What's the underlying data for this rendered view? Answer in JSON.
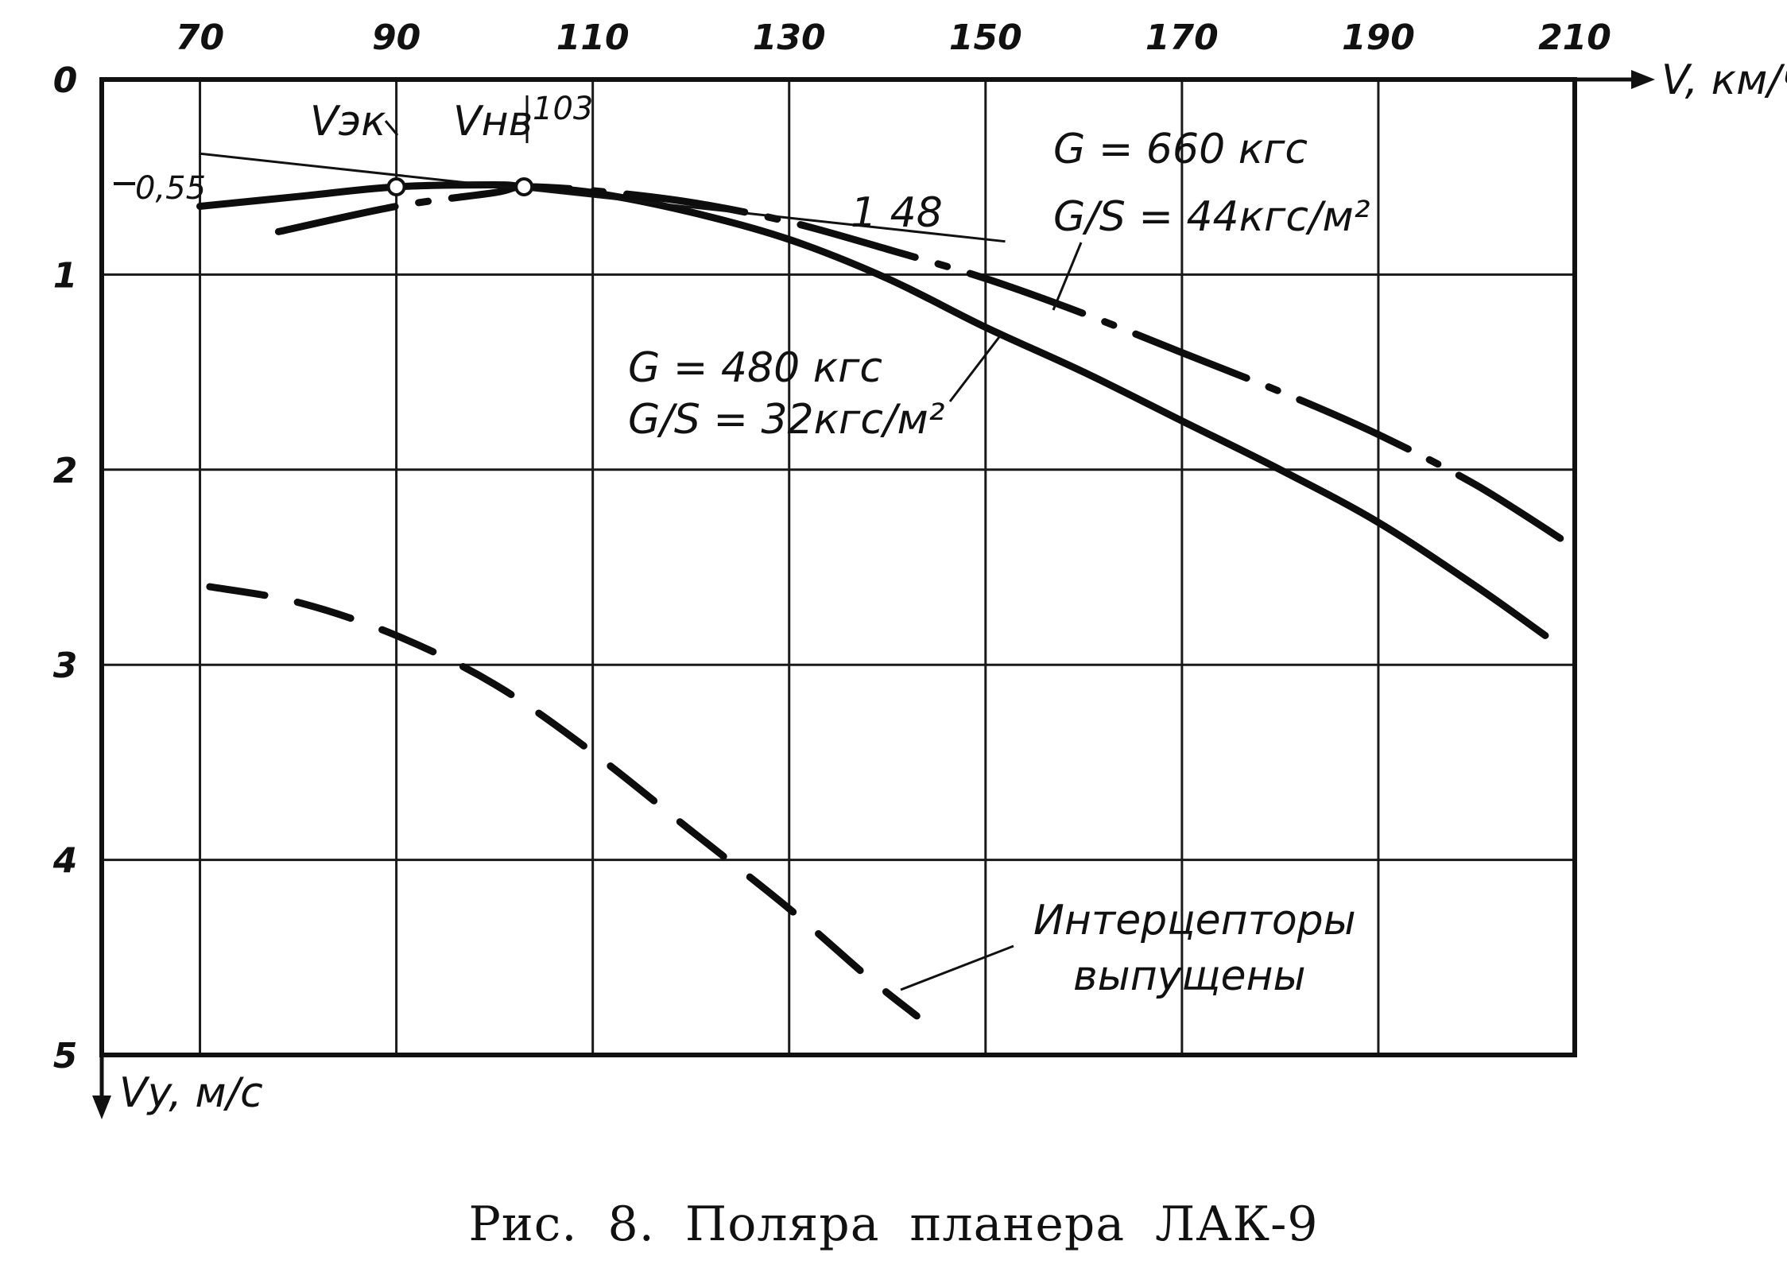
{
  "chart_data": {
    "type": "line",
    "title": "",
    "xlabel": "V, км/ч",
    "ylabel": "Vy, м/с",
    "xlim": [
      60,
      210
    ],
    "ylim": [
      0,
      5
    ],
    "x_ticks": [
      "70",
      "90",
      "110",
      "130",
      "150",
      "170",
      "190",
      "210"
    ],
    "y_ticks": [
      "0",
      "1",
      "2",
      "3",
      "4",
      "5"
    ],
    "y_axis_inverted": true,
    "grid": true,
    "series": [
      {
        "name": "",
        "style": "solid",
        "x": [
          70,
          80,
          90,
          100,
          103,
          110,
          120,
          130,
          140,
          150,
          160,
          170,
          180,
          190,
          200,
          207
        ],
        "y": [
          0.65,
          0.6,
          0.55,
          0.54,
          0.55,
          0.58,
          0.68,
          0.82,
          1.02,
          1.27,
          1.5,
          1.75,
          2.0,
          2.27,
          2.6,
          2.85
        ]
      },
      {
        "name": "",
        "style": "dash-dot",
        "x": [
          78,
          90,
          100,
          103,
          110,
          120,
          130,
          140,
          150,
          160,
          170,
          180,
          190,
          200,
          210
        ],
        "y": [
          0.78,
          0.65,
          0.58,
          0.55,
          0.57,
          0.63,
          0.73,
          0.87,
          1.02,
          1.2,
          1.4,
          1.6,
          1.82,
          2.08,
          2.4
        ]
      },
      {
        "name": "",
        "style": "dashed",
        "x": [
          71,
          80,
          90,
          100,
          110,
          120,
          130,
          138,
          143
        ],
        "y": [
          2.6,
          2.68,
          2.85,
          3.1,
          3.45,
          3.85,
          4.25,
          4.6,
          4.8
        ]
      }
    ],
    "points": [
      {
        "label": "Vэк",
        "x": 90,
        "y": 0.55
      },
      {
        "label": "Vнв",
        "x": 103,
        "y": 0.55
      }
    ],
    "tangent_line": {
      "x": [
        70,
        152
      ],
      "y": [
        0.38,
        0.83
      ]
    },
    "annotations": {
      "vek": "Vэк",
      "vnv": "Vнв",
      "v103": "103",
      "y055": "0,55",
      "ratio": "1  48",
      "heavy_weight": "G = 660 кгс",
      "heavy_loading": "G/S = 44кгс/м²",
      "light_weight": "G = 480 кгс",
      "light_loading": "G/S = 32кгс/м²",
      "spoilers_line1": "Интерцепторы",
      "spoilers_line2": "выпущены"
    }
  },
  "caption": "Рис. 8. Поляра планера ЛАК-9"
}
